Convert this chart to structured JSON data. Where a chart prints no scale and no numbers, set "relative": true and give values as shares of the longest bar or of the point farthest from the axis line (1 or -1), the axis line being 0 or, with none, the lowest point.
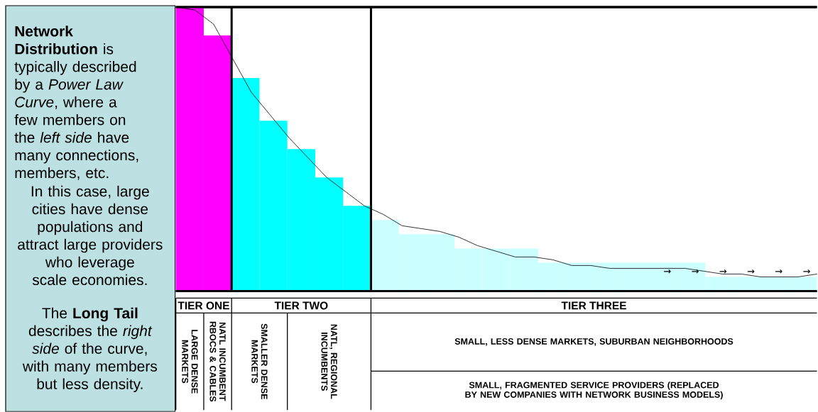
{
  "chart_data": [
    {
      "type": "bar",
      "relative": true,
      "categories": [
        null,
        null,
        null,
        null,
        null,
        null,
        null,
        null,
        null,
        null,
        null,
        null,
        null,
        null,
        null,
        null,
        null,
        null,
        null,
        null,
        null,
        null,
        null
      ],
      "values": [
        1,
        0.9,
        0.75,
        0.6,
        0.5,
        0.4,
        0.3,
        0.25,
        0.2,
        0.2,
        0.15,
        0.15,
        0.15,
        0.1,
        0.1,
        0.1,
        0.1,
        0.1,
        0.1,
        0.05,
        0.05,
        0.05,
        0.05
      ],
      "colors": [
        "#ff00ff",
        "#ff00ff",
        "#00ffff",
        "#00ffff",
        "#00ffff",
        "#00ffff",
        "#00ffff",
        "#ccffff",
        "#ccffff",
        "#ccffff",
        "#ccffff",
        "#ccffff",
        "#ccffff",
        "#ccffff",
        "#ccffff",
        "#ccffff",
        "#ccffff",
        "#ccffff",
        "#ccffff",
        "#ccffff",
        "#ccffff",
        "#ccffff",
        "#ccffff"
      ],
      "annotations": [
        "**Network Distribution** is typically described by a *Power Law Curve*, where a few members on the *left side* have many connections, members, etc.",
        "In this case, large cities have dense populations and attract large providers who leverage scale economies.",
        "The **Long Tail** describes the *right side* of the curve, with many members but less density.",
        "TIER ONE",
        "TIER TWO",
        "TIER THREE",
        "LARGE DENSE MARKETS",
        "NATL INCUMBENT RBOCS & CABLES",
        "SMALLER DENSE MARKETS",
        "NATL, REGIONAL INCUMBENTS",
        "SMALL, LESS DENSE MARKETS, SUBURBAN NEIGHBORHOODS",
        "SMALL, FRAGMENTED SERVICE PROVIDERS (REPLACED BY NEW COMPANIES WITH NETWORK BUSINESS MODELS)"
      ]
    },
    {
      "type": "line",
      "relative": true,
      "color": "#000000",
      "categories": [
        null,
        null,
        null,
        null,
        null,
        null,
        null,
        null,
        null,
        null,
        null,
        null,
        null,
        null,
        null,
        null,
        null,
        null,
        null,
        null,
        null,
        null,
        null,
        null,
        null,
        null,
        null,
        null,
        null,
        null,
        null,
        null,
        null,
        null,
        null
      ],
      "values": [
        1,
        0.99,
        0.94,
        0.82,
        0.7,
        0.62,
        0.54,
        0.47,
        0.4,
        0.35,
        0.3,
        0.27,
        0.23,
        0.22,
        0.21,
        0.19,
        0.16,
        0.14,
        0.12,
        0.12,
        0.11,
        0.09,
        0.09,
        0.08,
        0.08,
        0.08,
        0.08,
        0.08,
        0.07,
        0.06,
        0.06,
        0.05,
        0.05,
        0.05,
        0.06
      ],
      "annotations": [
        "→",
        "→",
        "→",
        "→",
        "→",
        "→"
      ]
    }
  ]
}
